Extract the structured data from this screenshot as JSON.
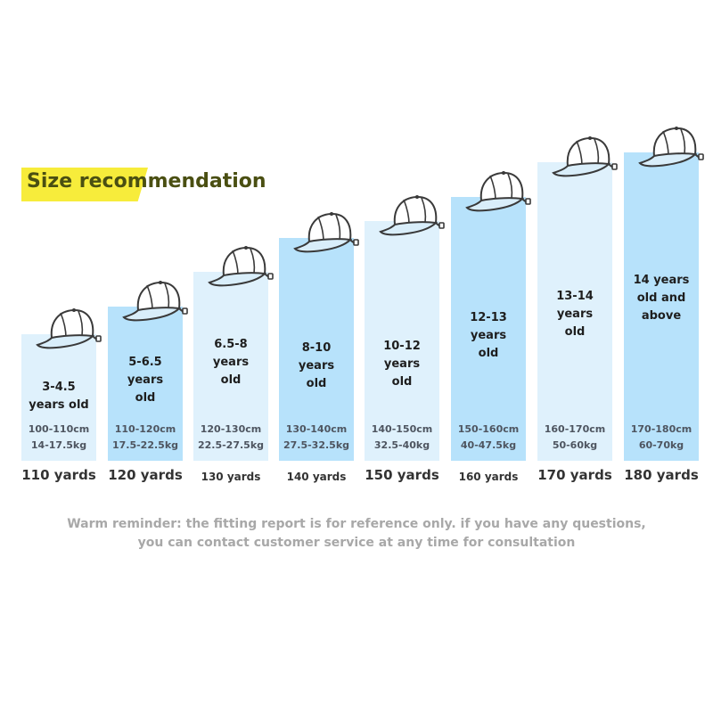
{
  "title": "Size recommendation",
  "colors": {
    "banner": "#f7ec3b",
    "title_text": "#4a4f12",
    "bar_light": "#dff1fc",
    "bar_dark": "#b7e2fb",
    "dims_text": "#4e5560",
    "reminder_text": "#a8a8a8",
    "cap_stroke": "#3a3a3a"
  },
  "sizes": [
    {
      "size": "110 yards",
      "age_lines": [
        "3-4.5",
        "years old"
      ],
      "height": "100-110cm",
      "weight": "14-17.5kg",
      "shade": "light",
      "label_style": "big"
    },
    {
      "size": "120 yards",
      "age_lines": [
        "5-6.5",
        "years",
        "old"
      ],
      "height": "110-120cm",
      "weight": "17.5-22.5kg",
      "shade": "dark",
      "label_style": "big"
    },
    {
      "size": "130 yards",
      "age_lines": [
        "6.5-8",
        "years",
        "old"
      ],
      "height": "120-130cm",
      "weight": "22.5-27.5kg",
      "shade": "light",
      "label_style": "small"
    },
    {
      "size": "140 yards",
      "age_lines": [
        "8-10",
        "years",
        "old"
      ],
      "height": "130-140cm",
      "weight": "27.5-32.5kg",
      "shade": "dark",
      "label_style": "small"
    },
    {
      "size": "150 yards",
      "age_lines": [
        "10-12",
        "years",
        "old"
      ],
      "height": "140-150cm",
      "weight": "32.5-40kg",
      "shade": "light",
      "label_style": "big"
    },
    {
      "size": "160 yards",
      "age_lines": [
        "12-13",
        "years",
        "old"
      ],
      "height": "150-160cm",
      "weight": "40-47.5kg",
      "shade": "dark",
      "label_style": "small"
    },
    {
      "size": "170 yards",
      "age_lines": [
        "13-14",
        "years",
        "old"
      ],
      "height": "160-170cm",
      "weight": "50-60kg",
      "shade": "light",
      "label_style": "big"
    },
    {
      "size": "180 yards",
      "age_lines": [
        "14 years",
        "old and",
        "above"
      ],
      "height": "170-180cm",
      "weight": "60-70kg",
      "shade": "dark",
      "label_style": "big"
    }
  ],
  "reminder": {
    "line1": "Warm reminder: the fitting report is for reference only. if you have any questions,",
    "line2": "you can contact customer service at any time for consultation"
  },
  "icon": "baseball-cap-icon"
}
